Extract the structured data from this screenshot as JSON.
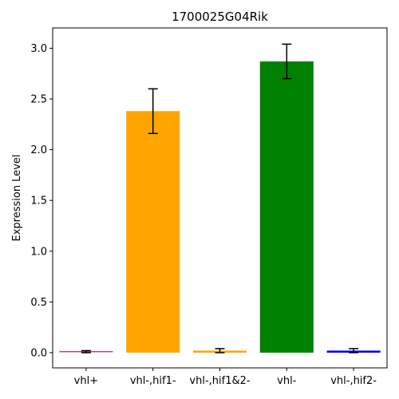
{
  "chart_data": {
    "type": "bar",
    "title": "1700025G04Rik",
    "xlabel": "",
    "ylabel": "Expression Level",
    "ylim": [
      -0.15,
      3.2
    ],
    "yticks": [
      0.0,
      0.5,
      1.0,
      1.5,
      2.0,
      2.5,
      3.0
    ],
    "ytick_labels": [
      "0.0",
      "0.5",
      "1.0",
      "1.5",
      "2.0",
      "2.5",
      "3.0"
    ],
    "categories": [
      "vhl+",
      "vhl-,hif1-",
      "vhl-,hif1&2-",
      "vhl-",
      "vhl-,hif2-"
    ],
    "values": [
      0.01,
      2.38,
      0.02,
      2.87,
      0.02
    ],
    "errors": [
      0.01,
      0.22,
      0.02,
      0.17,
      0.02
    ],
    "colors": [
      "#c0446b",
      "#ffa500",
      "#ffa500",
      "#008000",
      "#0000ff"
    ],
    "grid": false,
    "legend": "none"
  }
}
